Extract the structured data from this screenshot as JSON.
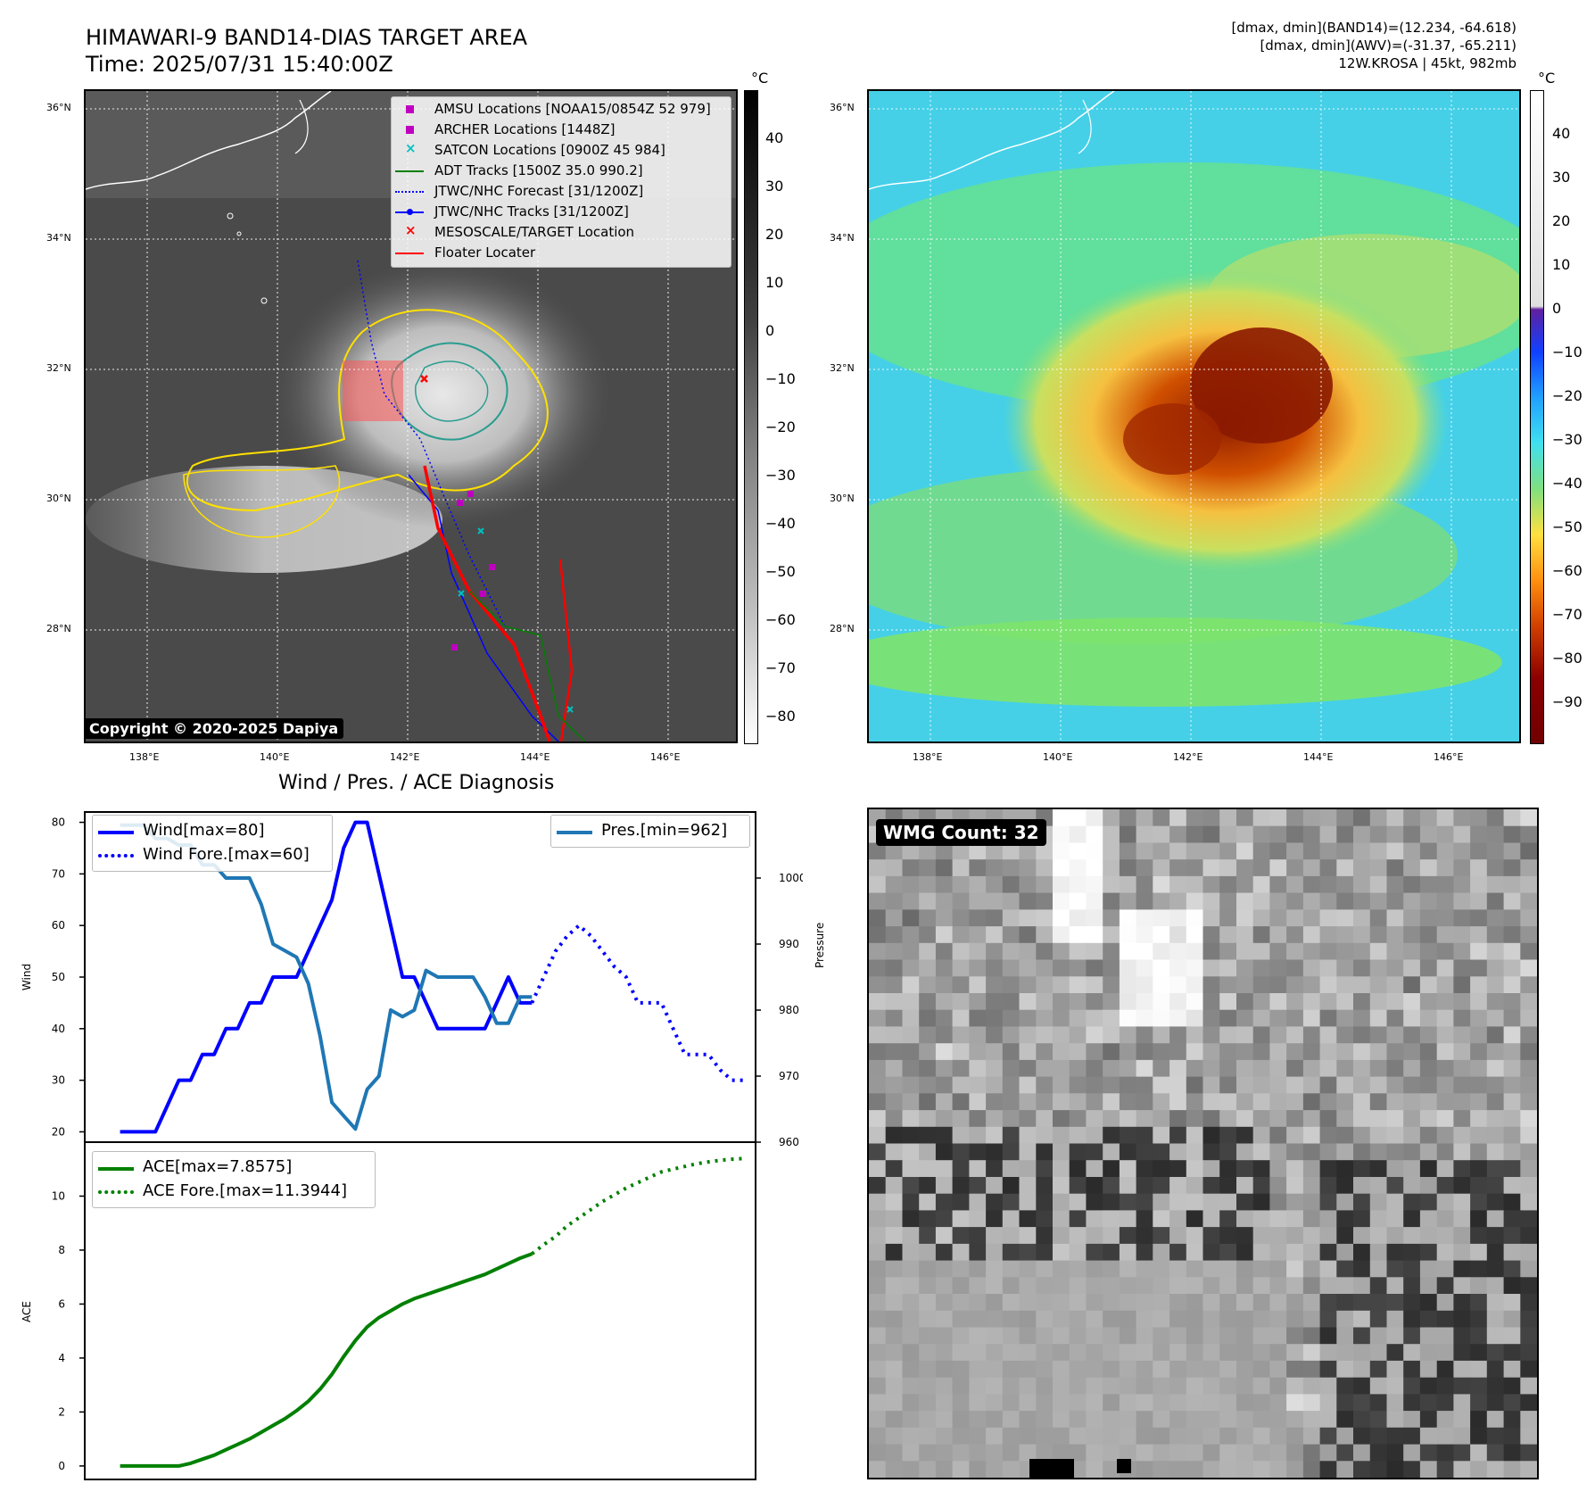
{
  "header": {
    "title_line1": "HIMAWARI-9 BAND14-DIAS TARGET AREA",
    "title_line2": "Time: 2025/07/31 15:40:00Z",
    "info_line1": "[dmax, dmin](BAND14)=(12.234, -64.618)",
    "info_line2": "[dmax, dmin](AWV)=(-31.37, -65.211)",
    "info_line3": "12W.KROSA | 45kt, 982mb"
  },
  "colors": {
    "wind": "#0000ff",
    "pressure": "#1f77b4",
    "ace": "#008000",
    "track_red": "#ff0000",
    "contour_yellow": "#ffe000",
    "contour_teal": "#2a9d8f",
    "amsu_marker": "#c000c0",
    "satcon_marker": "#00c0c0"
  },
  "map_ir": {
    "lat_labels": [
      "36°N",
      "34°N",
      "32°N",
      "30°N",
      "28°N"
    ],
    "lon_labels": [
      "138°E",
      "140°E",
      "142°E",
      "144°E",
      "146°E"
    ],
    "colorbar_unit": "°C",
    "colorbar_ticks": [
      "40",
      "30",
      "20",
      "10",
      "0",
      "−10",
      "−20",
      "−30",
      "−40",
      "−50",
      "−60",
      "−70",
      "−80"
    ],
    "copyright": "Copyright © 2020-2025 Dapiya",
    "legend": [
      {
        "label": "AMSU Locations [NOAA15/0854Z 52 979]",
        "icon": "square-marker",
        "color": "#c000c0"
      },
      {
        "label": "ARCHER Locations [1448Z]",
        "icon": "square-marker",
        "color": "#c000c0"
      },
      {
        "label": "SATCON Locations [0900Z 45 984]",
        "icon": "x-marker",
        "color": "#00c0c0"
      },
      {
        "label": "ADT Tracks [1500Z 35.0 990.2]",
        "icon": "solid-line",
        "color": "#008000"
      },
      {
        "label": "JTWC/NHC Forecast [31/1200Z]",
        "icon": "dotted-line",
        "color": "#0000ff"
      },
      {
        "label": "JTWC/NHC Tracks [31/1200Z]",
        "icon": "line-dot",
        "color": "#0000ff"
      },
      {
        "label": "MESOSCALE/TARGET Location",
        "icon": "x-marker",
        "color": "#ff0000"
      },
      {
        "label": "Floater Locater",
        "icon": "solid-line",
        "color": "#ff0000"
      }
    ]
  },
  "map_awv": {
    "lat_labels": [
      "36°N",
      "34°N",
      "32°N",
      "30°N",
      "28°N"
    ],
    "lon_labels": [
      "138°E",
      "140°E",
      "142°E",
      "144°E",
      "146°E"
    ],
    "colorbar_unit": "°C",
    "colorbar_ticks": [
      "40",
      "30",
      "20",
      "10",
      "0",
      "−10",
      "−20",
      "−30",
      "−40",
      "−50",
      "−60",
      "−70",
      "−80",
      "−90"
    ]
  },
  "wmg": {
    "label": "WMG Count: 32"
  },
  "chart_data": [
    {
      "type": "line",
      "title": "Wind / Pres. / ACE Diagnosis",
      "ylabel": "Wind",
      "y2label": "Pressure",
      "ylim": [
        18,
        82
      ],
      "y2lim": [
        960,
        1010
      ],
      "yticks": [
        20,
        30,
        40,
        50,
        60,
        70,
        80
      ],
      "y2ticks": [
        960,
        970,
        980,
        990,
        1000
      ],
      "xlim": [
        -3,
        54
      ],
      "series": [
        {
          "name": "Wind[max=80]",
          "axis": "left",
          "style": "solid",
          "x": [
            0,
            1,
            2,
            3,
            4,
            5,
            6,
            7,
            8,
            9,
            10,
            11,
            12,
            13,
            14,
            15,
            16,
            17,
            18,
            19,
            20,
            21,
            22,
            23,
            24,
            25,
            26,
            27,
            28,
            29,
            30,
            31,
            32,
            33,
            34,
            35
          ],
          "values": [
            20,
            20,
            20,
            20,
            25,
            30,
            30,
            35,
            35,
            40,
            40,
            45,
            45,
            50,
            50,
            50,
            55,
            60,
            65,
            75,
            80,
            80,
            70,
            60,
            50,
            50,
            45,
            40,
            40,
            40,
            40,
            40,
            45,
            50,
            45,
            45
          ]
        },
        {
          "name": "Wind Fore.[max=60]",
          "axis": "left",
          "style": "dotted",
          "x": [
            35,
            36,
            37,
            38,
            39,
            40,
            41,
            42,
            43,
            44,
            45,
            46,
            47,
            48,
            49,
            50,
            51,
            52,
            53
          ],
          "values": [
            45,
            50,
            55,
            58,
            60,
            58,
            55,
            52,
            50,
            45,
            45,
            45,
            40,
            35,
            35,
            35,
            32,
            30,
            30
          ]
        },
        {
          "name": "Pres.[min=962]",
          "axis": "right",
          "style": "solid",
          "x": [
            0,
            1,
            2,
            3,
            4,
            5,
            6,
            7,
            8,
            9,
            10,
            11,
            12,
            13,
            14,
            15,
            16,
            17,
            18,
            19,
            20,
            21,
            22,
            23,
            24,
            25,
            26,
            27,
            28,
            29,
            30,
            31,
            32,
            33,
            34,
            35
          ],
          "values": [
            1008,
            1008,
            1008,
            1006,
            1006,
            1005,
            1005,
            1002,
            1002,
            1000,
            1000,
            1000,
            996,
            990,
            989,
            988,
            984,
            976,
            966,
            964,
            962,
            968,
            970,
            980,
            979,
            980,
            986,
            985,
            985,
            985,
            985,
            982,
            978,
            978,
            982,
            982
          ]
        }
      ]
    },
    {
      "type": "line",
      "ylabel": "ACE",
      "ylim": [
        -0.5,
        12
      ],
      "yticks": [
        0,
        2,
        4,
        6,
        8,
        10
      ],
      "xlim": [
        -3,
        54
      ],
      "series": [
        {
          "name": "ACE[max=7.8575]",
          "style": "solid",
          "x": [
            0,
            1,
            2,
            3,
            4,
            5,
            6,
            7,
            8,
            9,
            10,
            11,
            12,
            13,
            14,
            15,
            16,
            17,
            18,
            19,
            20,
            21,
            22,
            23,
            24,
            25,
            26,
            27,
            28,
            29,
            30,
            31,
            32,
            33,
            34,
            35
          ],
          "values": [
            0,
            0,
            0,
            0,
            0,
            0,
            0.1,
            0.25,
            0.4,
            0.6,
            0.8,
            1.0,
            1.25,
            1.5,
            1.75,
            2.05,
            2.4,
            2.85,
            3.4,
            4.05,
            4.65,
            5.15,
            5.5,
            5.75,
            6.0,
            6.2,
            6.35,
            6.5,
            6.65,
            6.8,
            6.95,
            7.1,
            7.3,
            7.5,
            7.7,
            7.86
          ]
        },
        {
          "name": "ACE Fore.[max=11.3944]",
          "style": "dotted",
          "x": [
            35,
            36,
            37,
            38,
            39,
            40,
            41,
            42,
            43,
            44,
            45,
            46,
            47,
            48,
            49,
            50,
            51,
            52,
            53
          ],
          "values": [
            7.86,
            8.2,
            8.5,
            8.9,
            9.2,
            9.5,
            9.8,
            10.05,
            10.3,
            10.5,
            10.7,
            10.9,
            11.0,
            11.1,
            11.2,
            11.27,
            11.33,
            11.37,
            11.39
          ]
        }
      ]
    }
  ]
}
